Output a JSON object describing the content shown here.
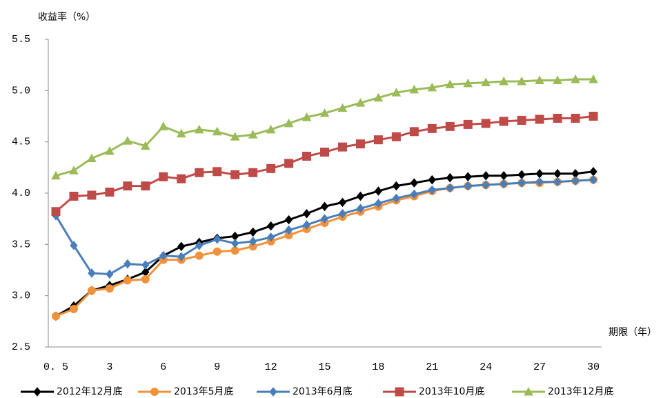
{
  "chart_data": {
    "type": "line",
    "y_label": "收益率（%）",
    "x_label": "期限（年）",
    "categories": [
      "0. 5",
      null,
      null,
      "3",
      null,
      null,
      "6",
      null,
      null,
      "9",
      null,
      null,
      "12",
      null,
      null,
      "15",
      null,
      null,
      "18",
      null,
      null,
      "21",
      null,
      null,
      "24",
      null,
      null,
      "27",
      null,
      null,
      "30"
    ],
    "ylim": [
      2.5,
      5.5
    ],
    "yticks": [
      2.5,
      {
        "value": 3,
        "label": "3.0"
      },
      3.5,
      {
        "value": 4,
        "label": "4.0"
      },
      4.5,
      {
        "value": 5,
        "label": "5.0"
      },
      5.5
    ],
    "series": [
      {
        "name": "2012年12月底",
        "color": "#000000",
        "marker": "diamond",
        "values": [
          2.8,
          2.9,
          3.05,
          3.1,
          3.16,
          3.23,
          3.39,
          3.48,
          3.52,
          3.56,
          3.58,
          3.62,
          3.68,
          3.74,
          3.8,
          3.87,
          3.91,
          3.97,
          4.02,
          4.07,
          4.1,
          4.13,
          4.15,
          4.16,
          4.17,
          4.17,
          4.18,
          4.19,
          4.19,
          4.19,
          4.21
        ]
      },
      {
        "name": "2013年5月底",
        "color": "#f0923b",
        "marker": "circle",
        "values": [
          2.8,
          2.87,
          3.05,
          3.07,
          3.15,
          3.16,
          3.35,
          3.35,
          3.39,
          3.43,
          3.44,
          3.48,
          3.53,
          3.59,
          3.65,
          3.71,
          3.77,
          3.82,
          3.87,
          3.93,
          3.97,
          4.02,
          4.05,
          4.07,
          4.08,
          4.09,
          4.1,
          4.1,
          4.11,
          4.12,
          4.13
        ]
      },
      {
        "name": "2013年6月底",
        "color": "#4a7ebb",
        "marker": "diamond",
        "values": [
          3.78,
          3.49,
          3.22,
          3.21,
          3.31,
          3.3,
          3.39,
          3.38,
          3.49,
          3.55,
          3.51,
          3.53,
          3.57,
          3.64,
          3.69,
          3.75,
          3.8,
          3.85,
          3.9,
          3.95,
          3.99,
          4.03,
          4.05,
          4.07,
          4.08,
          4.09,
          4.1,
          4.11,
          4.11,
          4.12,
          4.13
        ]
      },
      {
        "name": "2013年10月底",
        "color": "#be4b48",
        "marker": "square",
        "values": [
          3.82,
          3.97,
          3.98,
          4.01,
          4.07,
          4.07,
          4.16,
          4.14,
          4.2,
          4.21,
          4.18,
          4.2,
          4.24,
          4.29,
          4.36,
          4.4,
          4.45,
          4.48,
          4.52,
          4.55,
          4.6,
          4.63,
          4.65,
          4.67,
          4.68,
          4.7,
          4.71,
          4.72,
          4.73,
          4.73,
          4.75
        ]
      },
      {
        "name": "2013年12月底",
        "color": "#9bbb59",
        "marker": "triangle",
        "values": [
          4.17,
          4.22,
          4.34,
          4.41,
          4.51,
          4.46,
          4.65,
          4.58,
          4.62,
          4.6,
          4.55,
          4.57,
          4.62,
          4.68,
          4.74,
          4.78,
          4.83,
          4.88,
          4.93,
          4.98,
          5.01,
          5.03,
          5.06,
          5.07,
          5.08,
          5.09,
          5.09,
          5.1,
          5.1,
          5.11,
          5.11
        ]
      }
    ]
  }
}
